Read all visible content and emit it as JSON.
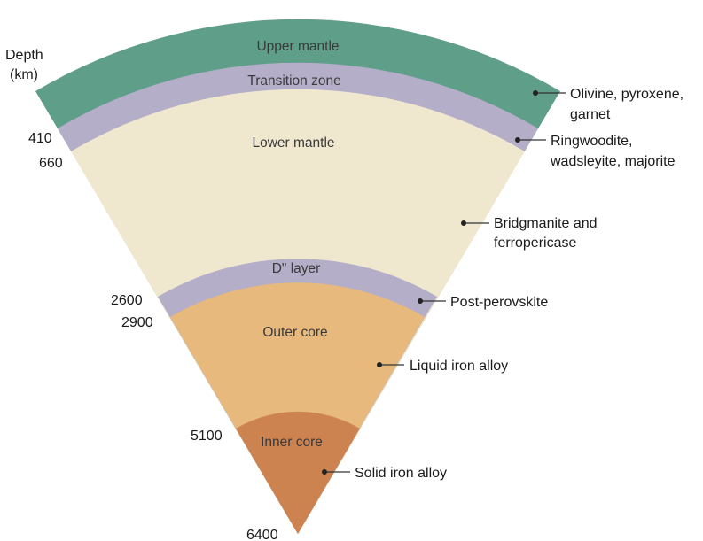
{
  "colors": {
    "upper_mantle": "#5f9e89",
    "transition_zone": "#b4aec9",
    "lower_mantle": "#efe8cf",
    "d_layer": "#b4aec9",
    "outer_core": "#e8b97c",
    "inner_core": "#cd8350",
    "leader": "#333333"
  },
  "depth_axis": {
    "title_line1": "Depth",
    "title_line2": "(km)"
  },
  "layers": {
    "upper_mantle": "Upper mantle",
    "transition_zone": "Transition zone",
    "lower_mantle": "Lower mantle",
    "d_layer": "D\" layer",
    "outer_core": "Outer core",
    "inner_core": "Inner core"
  },
  "depths": {
    "d410": "410",
    "d660": "660",
    "d2600": "2600",
    "d2900": "2900",
    "d5100": "5100",
    "d6400": "6400"
  },
  "minerals": {
    "olivine_line1": "Olivine, pyroxene,",
    "olivine_line2": "garnet",
    "ringwoodite_line1": "Ringwoodite,",
    "ringwoodite_line2": "wadsleyite, majorite",
    "bridgmanite_line1": "Bridgmanite and",
    "bridgmanite_line2": "ferropericase",
    "postperovskite": "Post-perovskite",
    "liquid_iron": "Liquid iron alloy",
    "solid_iron": "Solid iron alloy"
  }
}
